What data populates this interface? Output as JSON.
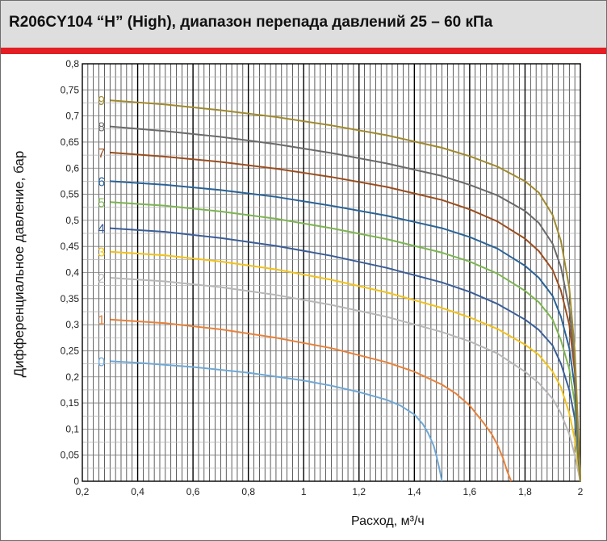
{
  "title": "R206CY104 “H” (High), диапазон перепада давлений 25 – 60 кПа",
  "chart_data": {
    "type": "line",
    "title": "R206CY104 “H” (High), диапазон перепада давлений 25 – 60 кПа",
    "xlabel": "Расход, м³/ч",
    "ylabel": "Дифференциальное давление, бар",
    "xlim": [
      0.2,
      2.0
    ],
    "ylim": [
      0,
      0.8
    ],
    "grid": true,
    "x_ticks": [
      "0,2",
      "0,4",
      "0,6",
      "0,8",
      "1",
      "1,2",
      "1,4",
      "1,6",
      "1,8",
      "2"
    ],
    "y_ticks": [
      "0",
      "0,05",
      "0,1",
      "0,15",
      "0,2",
      "0,25",
      "0,3",
      "0,35",
      "0,4",
      "0,45",
      "0,5",
      "0,55",
      "0,6",
      "0,65",
      "0,7",
      "0,75",
      "0,8"
    ],
    "series": [
      {
        "name": "0",
        "color": "#6fa8d6",
        "x": [
          0.3,
          0.4,
          0.6,
          0.8,
          1.0,
          1.1,
          1.2,
          1.3,
          1.35,
          1.4,
          1.43,
          1.45,
          1.47,
          1.48,
          1.49,
          1.5
        ],
        "y": [
          0.23,
          0.227,
          0.219,
          0.208,
          0.193,
          0.183,
          0.171,
          0.156,
          0.145,
          0.128,
          0.11,
          0.092,
          0.068,
          0.048,
          0.025,
          0.0
        ]
      },
      {
        "name": "1",
        "color": "#e8813a",
        "x": [
          0.3,
          0.5,
          0.7,
          0.9,
          1.1,
          1.3,
          1.4,
          1.5,
          1.55,
          1.6,
          1.65,
          1.68,
          1.7,
          1.72,
          1.735,
          1.75
        ],
        "y": [
          0.31,
          0.303,
          0.291,
          0.275,
          0.255,
          0.228,
          0.21,
          0.185,
          0.168,
          0.145,
          0.112,
          0.09,
          0.07,
          0.045,
          0.02,
          0.0
        ]
      },
      {
        "name": "2",
        "color": "#b7b7b7",
        "x": [
          0.3,
          0.5,
          0.7,
          0.9,
          1.1,
          1.3,
          1.5,
          1.6,
          1.7,
          1.8,
          1.85,
          1.9,
          1.93,
          1.96,
          1.98,
          2.0
        ],
        "y": [
          0.39,
          0.383,
          0.372,
          0.357,
          0.338,
          0.315,
          0.286,
          0.268,
          0.245,
          0.21,
          0.188,
          0.158,
          0.13,
          0.09,
          0.05,
          0.0
        ]
      },
      {
        "name": "3",
        "color": "#f3c21a",
        "x": [
          0.3,
          0.5,
          0.7,
          0.9,
          1.1,
          1.3,
          1.5,
          1.6,
          1.7,
          1.8,
          1.85,
          1.9,
          1.93,
          1.96,
          1.98,
          2.0
        ],
        "y": [
          0.44,
          0.433,
          0.421,
          0.406,
          0.386,
          0.362,
          0.332,
          0.314,
          0.292,
          0.262,
          0.242,
          0.21,
          0.18,
          0.13,
          0.08,
          0.0
        ]
      },
      {
        "name": "4",
        "color": "#3b5e98",
        "x": [
          0.3,
          0.5,
          0.7,
          0.9,
          1.1,
          1.3,
          1.5,
          1.6,
          1.7,
          1.8,
          1.85,
          1.9,
          1.93,
          1.96,
          1.98,
          2.0
        ],
        "y": [
          0.485,
          0.478,
          0.466,
          0.451,
          0.432,
          0.409,
          0.381,
          0.363,
          0.34,
          0.31,
          0.29,
          0.26,
          0.225,
          0.175,
          0.12,
          0.0
        ]
      },
      {
        "name": "5",
        "color": "#7db552",
        "x": [
          0.3,
          0.5,
          0.7,
          0.9,
          1.1,
          1.3,
          1.5,
          1.6,
          1.7,
          1.8,
          1.85,
          1.9,
          1.93,
          1.96,
          1.98,
          2.0
        ],
        "y": [
          0.535,
          0.528,
          0.517,
          0.503,
          0.485,
          0.464,
          0.438,
          0.421,
          0.398,
          0.365,
          0.343,
          0.31,
          0.27,
          0.215,
          0.15,
          0.0
        ]
      },
      {
        "name": "6",
        "color": "#2a6397",
        "x": [
          0.3,
          0.5,
          0.7,
          0.9,
          1.1,
          1.3,
          1.5,
          1.6,
          1.7,
          1.8,
          1.85,
          1.9,
          1.93,
          1.96,
          1.98,
          2.0
        ],
        "y": [
          0.575,
          0.568,
          0.558,
          0.545,
          0.528,
          0.509,
          0.485,
          0.468,
          0.446,
          0.413,
          0.39,
          0.355,
          0.315,
          0.255,
          0.18,
          0.0
        ]
      },
      {
        "name": "7",
        "color": "#9a4e1f",
        "x": [
          0.3,
          0.5,
          0.7,
          0.9,
          1.1,
          1.3,
          1.5,
          1.6,
          1.7,
          1.8,
          1.85,
          1.9,
          1.93,
          1.96,
          1.98,
          2.0
        ],
        "y": [
          0.63,
          0.622,
          0.612,
          0.599,
          0.583,
          0.564,
          0.539,
          0.521,
          0.498,
          0.465,
          0.441,
          0.405,
          0.365,
          0.3,
          0.21,
          0.0
        ]
      },
      {
        "name": "8",
        "color": "#6b6b6b",
        "x": [
          0.3,
          0.5,
          0.7,
          0.9,
          1.1,
          1.3,
          1.5,
          1.6,
          1.7,
          1.8,
          1.85,
          1.9,
          1.93,
          1.96,
          1.98,
          2.0
        ],
        "y": [
          0.68,
          0.671,
          0.66,
          0.646,
          0.629,
          0.609,
          0.585,
          0.568,
          0.548,
          0.518,
          0.495,
          0.455,
          0.41,
          0.33,
          0.23,
          0.0
        ]
      },
      {
        "name": "9",
        "color": "#a08a2f",
        "x": [
          0.3,
          0.5,
          0.7,
          0.9,
          1.1,
          1.3,
          1.5,
          1.6,
          1.7,
          1.8,
          1.85,
          1.9,
          1.93,
          1.96,
          1.98,
          2.0
        ],
        "y": [
          0.73,
          0.722,
          0.711,
          0.698,
          0.682,
          0.663,
          0.639,
          0.623,
          0.603,
          0.575,
          0.553,
          0.51,
          0.46,
          0.37,
          0.25,
          0.0
        ]
      }
    ]
  }
}
